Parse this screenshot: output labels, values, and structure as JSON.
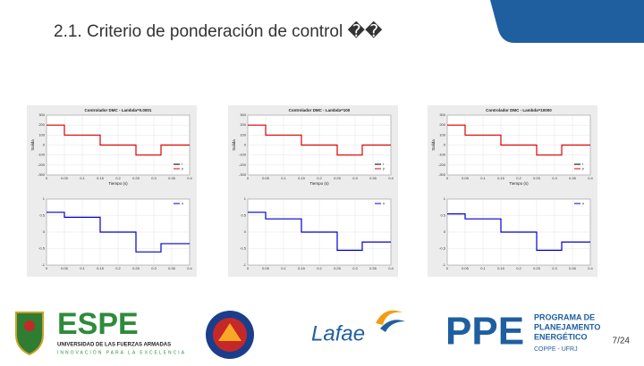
{
  "header": {
    "title": "2.1. Criterio de ponderación de control ��"
  },
  "page_number": "7/24",
  "figures": [
    {
      "top": {
        "type": "line",
        "title": "Controlador DMC - Lambda=0.0001",
        "xlabel": "Tiempo (s)",
        "ylabel": "Salida",
        "xlim": [
          0,
          0.4
        ],
        "xticks": [
          0,
          0.05,
          0.1,
          0.15,
          0.2,
          0.25,
          0.3,
          0.35,
          0.4
        ],
        "ylim": [
          -300,
          300
        ],
        "yticks": [
          -300,
          -200,
          -100,
          0,
          100,
          200,
          300
        ],
        "grid": true,
        "x": [
          0,
          0.05,
          0.05,
          0.15,
          0.15,
          0.25,
          0.25,
          0.32,
          0.32,
          0.4
        ],
        "series": [
          {
            "name": "r",
            "color": "#000000",
            "values": [
              200,
              200,
              100,
              100,
              0,
              0,
              -100,
              -100,
              0,
              0
            ]
          },
          {
            "name": "y",
            "color": "#e00000",
            "values": [
              200,
              200,
              100,
              100,
              0,
              0,
              -100,
              -100,
              0,
              0
            ]
          }
        ]
      },
      "bottom": {
        "type": "line",
        "xlim": [
          0,
          0.4
        ],
        "xticks": [
          0,
          0.05,
          0.1,
          0.15,
          0.2,
          0.25,
          0.3,
          0.35,
          0.4
        ],
        "ylim": [
          -1,
          1
        ],
        "yticks": [
          -1,
          -0.5,
          0,
          0.5,
          1
        ],
        "grid": true,
        "x": [
          0,
          0.05,
          0.05,
          0.15,
          0.15,
          0.25,
          0.25,
          0.32,
          0.32,
          0.4
        ],
        "series": [
          {
            "name": "u",
            "color": "#0000cc",
            "values": [
              0.6,
              0.6,
              0.45,
              0.45,
              0,
              0,
              -0.6,
              -0.6,
              -0.35,
              -0.35
            ]
          }
        ]
      }
    },
    {
      "top": {
        "type": "line",
        "title": "Controlador DMC - Lambda=100",
        "xlabel": "Tiempo (s)",
        "ylabel": "Salida",
        "xlim": [
          0,
          0.4
        ],
        "xticks": [
          0,
          0.05,
          0.1,
          0.15,
          0.2,
          0.25,
          0.3,
          0.35,
          0.4
        ],
        "ylim": [
          -300,
          300
        ],
        "yticks": [
          -300,
          -200,
          -100,
          0,
          100,
          200,
          300
        ],
        "grid": true,
        "x": [
          0,
          0.05,
          0.05,
          0.15,
          0.15,
          0.25,
          0.25,
          0.32,
          0.32,
          0.4
        ],
        "series": [
          {
            "name": "r",
            "color": "#000000",
            "values": [
              200,
              200,
              100,
              100,
              0,
              0,
              -100,
              -100,
              0,
              0
            ]
          },
          {
            "name": "y",
            "color": "#e00000",
            "values": [
              200,
              200,
              100,
              100,
              0,
              0,
              -100,
              -100,
              0,
              0
            ]
          }
        ]
      },
      "bottom": {
        "type": "line",
        "xlim": [
          0,
          0.4
        ],
        "xticks": [
          0,
          0.05,
          0.1,
          0.15,
          0.2,
          0.25,
          0.3,
          0.35,
          0.4
        ],
        "ylim": [
          -1,
          1
        ],
        "yticks": [
          -1,
          -0.5,
          0,
          0.5,
          1
        ],
        "grid": true,
        "x": [
          0,
          0.05,
          0.05,
          0.15,
          0.15,
          0.25,
          0.25,
          0.32,
          0.32,
          0.4
        ],
        "series": [
          {
            "name": "u",
            "color": "#0000cc",
            "values": [
              0.6,
              0.6,
              0.4,
              0.4,
              0,
              0,
              -0.55,
              -0.55,
              -0.3,
              -0.3
            ]
          }
        ]
      }
    },
    {
      "top": {
        "type": "line",
        "title": "Controlador DMC - Lambda=10000",
        "xlabel": "Tiempo (s)",
        "ylabel": "Salida",
        "xlim": [
          0,
          0.4
        ],
        "xticks": [
          0,
          0.05,
          0.1,
          0.15,
          0.2,
          0.25,
          0.3,
          0.35,
          0.4
        ],
        "ylim": [
          -300,
          300
        ],
        "yticks": [
          -300,
          -200,
          -100,
          0,
          100,
          200,
          300
        ],
        "grid": true,
        "x": [
          0,
          0.05,
          0.05,
          0.15,
          0.15,
          0.25,
          0.25,
          0.32,
          0.32,
          0.4
        ],
        "series": [
          {
            "name": "r",
            "color": "#000000",
            "values": [
              200,
              200,
              100,
              100,
              0,
              0,
              -100,
              -100,
              0,
              0
            ]
          },
          {
            "name": "y",
            "color": "#e00000",
            "values": [
              200,
              200,
              100,
              100,
              0,
              0,
              -100,
              -100,
              0,
              0
            ]
          }
        ]
      },
      "bottom": {
        "type": "line",
        "xlim": [
          0,
          0.4
        ],
        "xticks": [
          0,
          0.05,
          0.1,
          0.15,
          0.2,
          0.25,
          0.3,
          0.35,
          0.4
        ],
        "ylim": [
          -1,
          1
        ],
        "yticks": [
          -1,
          -0.5,
          0,
          0.5,
          1
        ],
        "grid": true,
        "x": [
          0,
          0.05,
          0.05,
          0.15,
          0.15,
          0.25,
          0.25,
          0.32,
          0.32,
          0.4
        ],
        "series": [
          {
            "name": "u",
            "color": "#0000cc",
            "values": [
              0.55,
              0.55,
              0.4,
              0.4,
              0,
              0,
              -0.55,
              -0.55,
              -0.3,
              -0.3
            ]
          }
        ]
      }
    }
  ],
  "logos": {
    "espe": {
      "name": "ESPE",
      "line1": "UNIVERSIDAD DE LAS FUERZAS ARMADAS",
      "line2": "INNOVACIÓN PARA LA EXCELENCIA"
    },
    "lafae": {
      "name": "Lafae"
    },
    "ppe": {
      "name": "PPE",
      "line1": "PROGRAMA DE",
      "line2": "PLANEJAMENTO",
      "line3": "ENERGÉTICO",
      "line4": "COPPE - UFRJ"
    }
  }
}
